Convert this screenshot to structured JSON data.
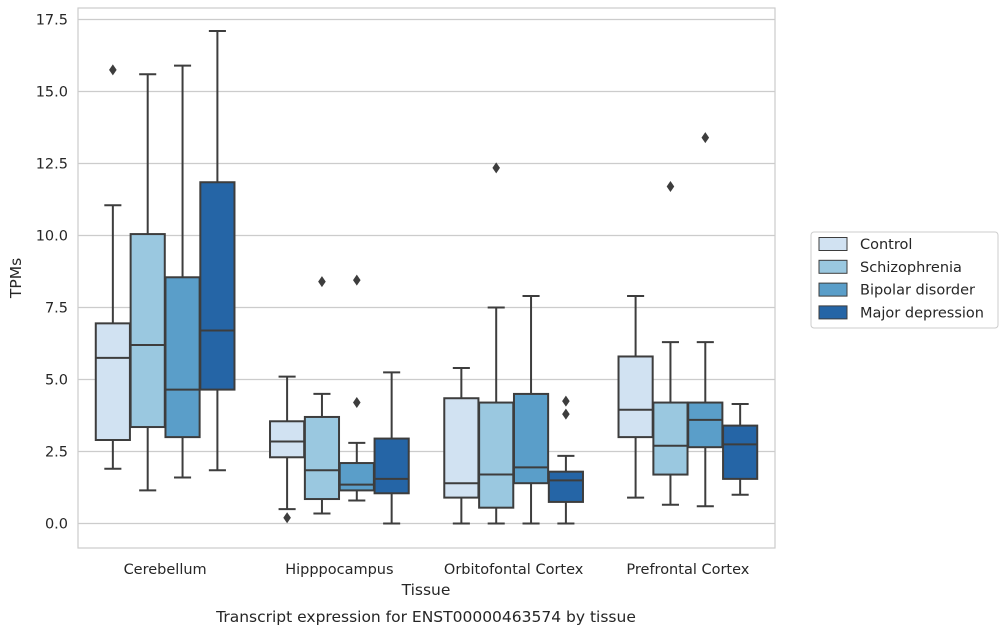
{
  "chart_data": {
    "type": "box",
    "caption": "Transcript expression for ENST00000463574 by tissue",
    "xlabel": "Tissue",
    "ylabel": "TPMs",
    "ylim": [
      -0.85,
      17.9
    ],
    "yticks": [
      "0.0",
      "2.5",
      "5.0",
      "7.5",
      "10.0",
      "12.5",
      "15.0",
      "17.5"
    ],
    "grid": "horizontal",
    "legend_position": "right",
    "categories": [
      "Cerebellum",
      "Hipppocampus",
      "Orbitofontal Cortex",
      "Prefrontal Cortex"
    ],
    "series": [
      {
        "name": "Control",
        "color": "#d1e2f2",
        "boxes": [
          {
            "whisker_low": 1.9,
            "q1": 2.9,
            "median": 5.75,
            "q3": 6.95,
            "whisker_high": 11.05,
            "outliers": [
              15.75
            ]
          },
          {
            "whisker_low": 0.5,
            "q1": 2.3,
            "median": 2.85,
            "q3": 3.55,
            "whisker_high": 5.1,
            "outliers": [
              0.2
            ]
          },
          {
            "whisker_low": 0.0,
            "q1": 0.9,
            "median": 1.4,
            "q3": 4.35,
            "whisker_high": 5.4,
            "outliers": []
          },
          {
            "whisker_low": 0.9,
            "q1": 3.0,
            "median": 3.95,
            "q3": 5.8,
            "whisker_high": 7.9,
            "outliers": []
          }
        ]
      },
      {
        "name": "Schizophrenia",
        "color": "#9ac8e0",
        "boxes": [
          {
            "whisker_low": 1.15,
            "q1": 3.35,
            "median": 6.2,
            "q3": 10.05,
            "whisker_high": 15.6,
            "outliers": []
          },
          {
            "whisker_low": 0.35,
            "q1": 0.85,
            "median": 1.85,
            "q3": 3.7,
            "whisker_high": 4.5,
            "outliers": [
              8.4
            ]
          },
          {
            "whisker_low": 0.0,
            "q1": 0.55,
            "median": 1.7,
            "q3": 4.2,
            "whisker_high": 7.5,
            "outliers": [
              12.35
            ]
          },
          {
            "whisker_low": 0.65,
            "q1": 1.7,
            "median": 2.7,
            "q3": 4.2,
            "whisker_high": 6.3,
            "outliers": [
              11.7
            ]
          }
        ]
      },
      {
        "name": "Bipolar disorder",
        "color": "#5a9ec9",
        "boxes": [
          {
            "whisker_low": 1.6,
            "q1": 3.0,
            "median": 4.65,
            "q3": 8.55,
            "whisker_high": 15.9,
            "outliers": []
          },
          {
            "whisker_low": 0.8,
            "q1": 1.15,
            "median": 1.35,
            "q3": 2.1,
            "whisker_high": 2.8,
            "outliers": [
              8.45,
              4.2
            ]
          },
          {
            "whisker_low": 0.0,
            "q1": 1.4,
            "median": 1.95,
            "q3": 4.5,
            "whisker_high": 7.9,
            "outliers": []
          },
          {
            "whisker_low": 0.6,
            "q1": 2.65,
            "median": 3.6,
            "q3": 4.2,
            "whisker_high": 6.3,
            "outliers": [
              13.4
            ]
          }
        ]
      },
      {
        "name": "Major depression",
        "color": "#2565a6",
        "boxes": [
          {
            "whisker_low": 1.85,
            "q1": 4.65,
            "median": 6.7,
            "q3": 11.85,
            "whisker_high": 17.1,
            "outliers": []
          },
          {
            "whisker_low": 0.0,
            "q1": 1.05,
            "median": 1.55,
            "q3": 2.95,
            "whisker_high": 5.25,
            "outliers": []
          },
          {
            "whisker_low": 0.0,
            "q1": 0.75,
            "median": 1.5,
            "q3": 1.8,
            "whisker_high": 2.35,
            "outliers": [
              4.25,
              3.8
            ]
          },
          {
            "whisker_low": 1.0,
            "q1": 1.55,
            "median": 2.75,
            "q3": 3.4,
            "whisker_high": 4.15,
            "outliers": []
          }
        ]
      }
    ]
  }
}
